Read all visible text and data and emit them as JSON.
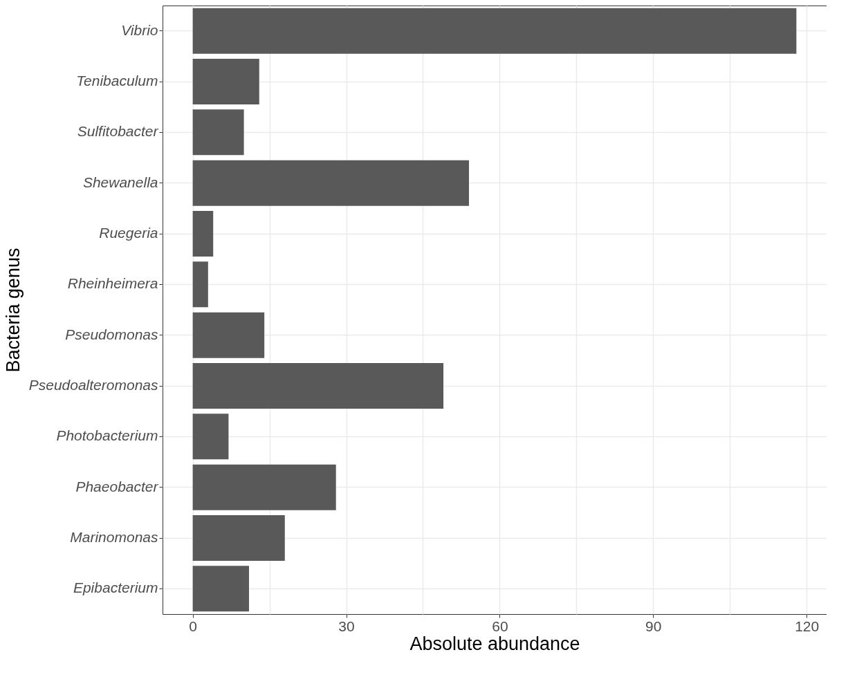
{
  "chart_data": {
    "type": "bar",
    "orientation": "horizontal",
    "xlabel": "Absolute abundance",
    "ylabel": "Bacteria genus",
    "categories": [
      "Vibrio",
      "Tenibaculum",
      "Sulfitobacter",
      "Shewanella",
      "Ruegeria",
      "Rheinheimera",
      "Pseudomonas",
      "Pseudoalteromonas",
      "Photobacterium",
      "Phaeobacter",
      "Marinomonas",
      "Epibacterium"
    ],
    "values": [
      118,
      13,
      10,
      54,
      4,
      3,
      14,
      49,
      7,
      28,
      18,
      11
    ],
    "color": "#595959",
    "xlim": [
      -5.9,
      123.9
    ],
    "xticks": [
      0,
      {
        "value": 15,
        "label": null
      },
      30,
      {
        "value": 45,
        "label": null
      },
      60,
      {
        "value": 75,
        "label": null
      },
      90,
      {
        "value": 105,
        "label": null
      },
      120
    ],
    "grid": true
  }
}
